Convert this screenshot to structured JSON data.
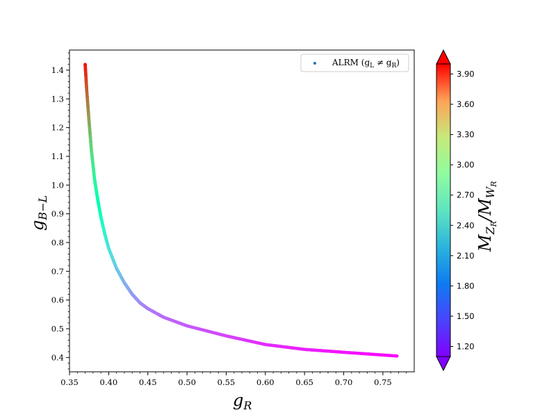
{
  "chart_data": {
    "type": "scatter",
    "xlabel": {
      "base": "g",
      "sub": "R"
    },
    "ylabel": {
      "base": "g",
      "sub": "B−L"
    },
    "xlim": [
      0.35,
      0.79
    ],
    "ylim": [
      0.35,
      1.47
    ],
    "x_ticks": [
      "0.35",
      "0.40",
      "0.45",
      "0.50",
      "0.55",
      "0.60",
      "0.65",
      "0.70",
      "0.75"
    ],
    "y_ticks": [
      "0.4",
      "0.5",
      "0.6",
      "0.7",
      "0.8",
      "0.9",
      "1.0",
      "1.1",
      "1.2",
      "1.3",
      "1.4"
    ],
    "legend": {
      "label": "ALRM (g",
      "sub1": "L",
      "mid": " ≠ g",
      "sub2": "R",
      "end": ")",
      "color": "#1f77b4",
      "placement": "top-right"
    },
    "colorbar": {
      "label_base": "M",
      "label_sub1": "Z",
      "label_subsub1": "R",
      "label_slash": "/M",
      "label_sub2": "W",
      "label_subsub2": "R",
      "range": [
        1.1,
        4.0
      ],
      "ticks": [
        "1.20",
        "1.50",
        "1.80",
        "2.10",
        "2.40",
        "2.70",
        "3.00",
        "3.30",
        "3.60",
        "3.90"
      ],
      "colormap": "rainbow",
      "extend": "both"
    },
    "series": [
      {
        "x": [
          0.37,
          0.372,
          0.375,
          0.378,
          0.382,
          0.386,
          0.39,
          0.395,
          0.4,
          0.41,
          0.42,
          0.43,
          0.44,
          0.45,
          0.47,
          0.5,
          0.55,
          0.6,
          0.65,
          0.7,
          0.768
        ],
        "y": [
          1.42,
          1.33,
          1.22,
          1.12,
          1.02,
          0.95,
          0.89,
          0.83,
          0.78,
          0.71,
          0.66,
          0.62,
          0.59,
          0.57,
          0.54,
          0.51,
          0.475,
          0.445,
          0.428,
          0.418,
          0.405
        ],
        "z": [
          3.95,
          3.65,
          3.35,
          3.05,
          2.8,
          2.6,
          2.42,
          2.25,
          2.12,
          1.95,
          1.82,
          1.72,
          1.64,
          1.58,
          1.5,
          1.44,
          1.35,
          1.27,
          1.22,
          1.17,
          1.12
        ]
      }
    ]
  }
}
